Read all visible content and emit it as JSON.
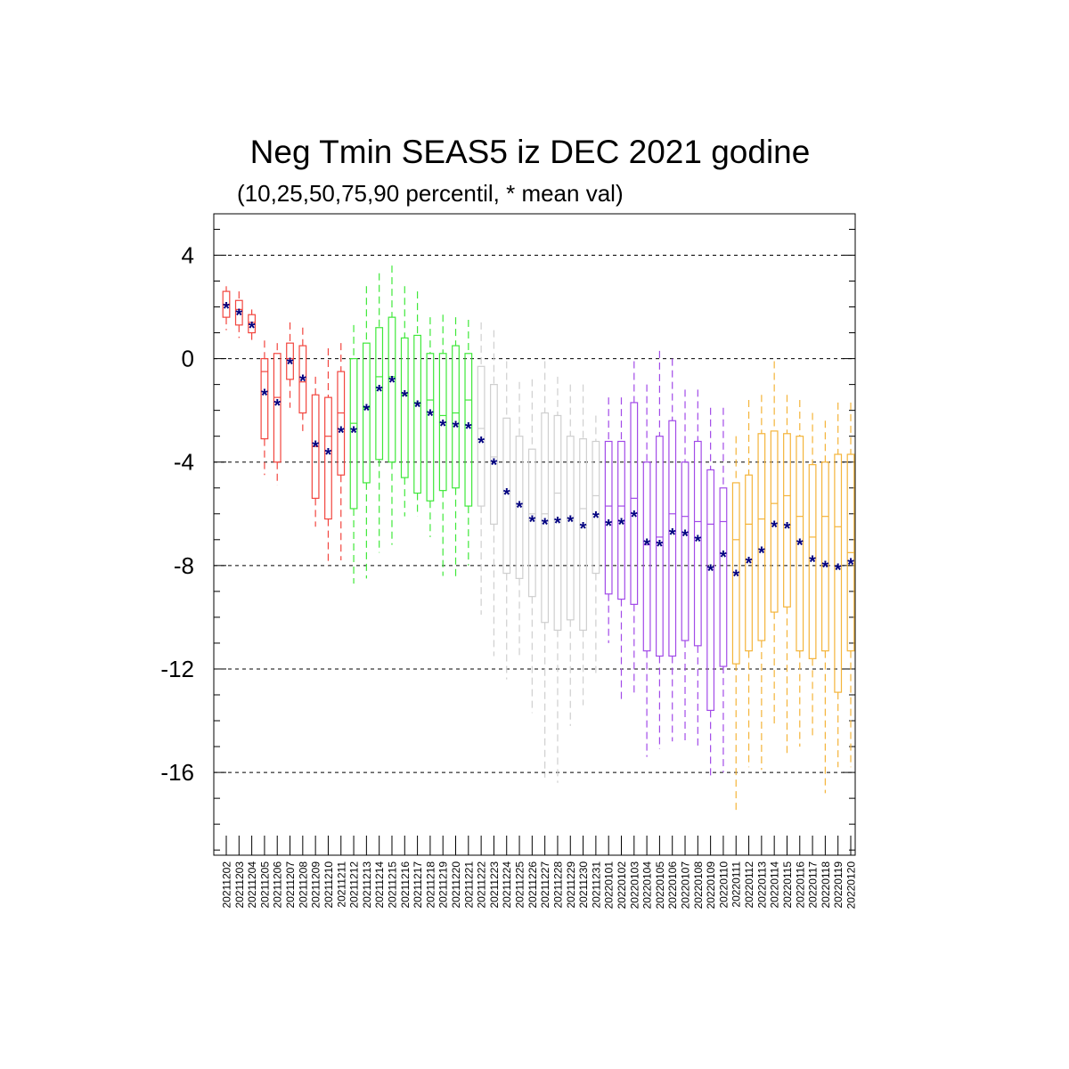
{
  "chart_data": {
    "type": "box",
    "title": "Neg Tmin SEAS5 iz DEC 2021 godine",
    "subtitle": "(10,25,50,75,90 percentil, * mean val)",
    "ylim": [
      -19.2,
      5.6
    ],
    "yticks": [
      4,
      0,
      -4,
      -8,
      -12,
      -16
    ],
    "grid": "dashed horizontal at labeled ticks",
    "mean_marker": "*",
    "colors": {
      "red": "#f2453e",
      "green": "#3fe83a",
      "gray": "#cfcfcf",
      "purple": "#a24be8",
      "orange": "#f4b43a",
      "mean": "#000080"
    },
    "boxes": [
      {
        "x": "20211202",
        "color": "red",
        "p10": 1.1,
        "p25": 1.6,
        "p50": 2.1,
        "p75": 2.6,
        "p90": 2.8,
        "mean": 2.05
      },
      {
        "x": "20211203",
        "color": "red",
        "p10": 0.8,
        "p25": 1.3,
        "p50": 1.9,
        "p75": 2.25,
        "p90": 2.6,
        "mean": 1.8
      },
      {
        "x": "20211204",
        "color": "red",
        "p10": 0.6,
        "p25": 1.0,
        "p50": 1.4,
        "p75": 1.7,
        "p90": 1.9,
        "mean": 1.3
      },
      {
        "x": "20211205",
        "color": "red",
        "p10": -4.5,
        "p25": -3.1,
        "p50": -0.5,
        "p75": 0.0,
        "p90": 0.7,
        "mean": -1.3
      },
      {
        "x": "20211206",
        "color": "red",
        "p10": -4.9,
        "p25": -4.0,
        "p50": -1.5,
        "p75": 0.2,
        "p90": 0.6,
        "mean": -1.7
      },
      {
        "x": "20211207",
        "color": "red",
        "p10": -1.9,
        "p25": -0.8,
        "p50": 0.0,
        "p75": 0.6,
        "p90": 1.4,
        "mean": -0.1
      },
      {
        "x": "20211208",
        "color": "red",
        "p10": -2.8,
        "p25": -2.1,
        "p50": -0.9,
        "p75": 0.5,
        "p90": 1.2,
        "mean": -0.75
      },
      {
        "x": "20211209",
        "color": "red",
        "p10": -6.5,
        "p25": -5.4,
        "p50": -3.4,
        "p75": -1.4,
        "p90": -0.7,
        "mean": -3.3
      },
      {
        "x": "20211210",
        "color": "red",
        "p10": -8.0,
        "p25": -6.2,
        "p50": -3.0,
        "p75": -1.5,
        "p90": 0.4,
        "mean": -3.6
      },
      {
        "x": "20211211",
        "color": "red",
        "p10": -7.8,
        "p25": -4.5,
        "p50": -2.1,
        "p75": -0.5,
        "p90": 0.6,
        "mean": -2.75
      },
      {
        "x": "20211212",
        "color": "green",
        "p10": -8.7,
        "p25": -5.8,
        "p50": -2.5,
        "p75": 0.0,
        "p90": 1.3,
        "mean": -2.75
      },
      {
        "x": "20211213",
        "color": "green",
        "p10": -8.5,
        "p25": -4.8,
        "p50": -1.9,
        "p75": 0.6,
        "p90": 2.8,
        "mean": -1.9
      },
      {
        "x": "20211214",
        "color": "green",
        "p10": -7.5,
        "p25": -3.9,
        "p50": -0.7,
        "p75": 1.2,
        "p90": 3.3,
        "mean": -1.15
      },
      {
        "x": "20211215",
        "color": "green",
        "p10": -7.2,
        "p25": -4.0,
        "p50": -0.7,
        "p75": 1.6,
        "p90": 3.6,
        "mean": -0.8
      },
      {
        "x": "20211216",
        "color": "green",
        "p10": -6.1,
        "p25": -4.6,
        "p50": -1.4,
        "p75": 0.8,
        "p90": 2.8,
        "mean": -1.35
      },
      {
        "x": "20211217",
        "color": "green",
        "p10": -6.1,
        "p25": -5.2,
        "p50": -1.7,
        "p75": 0.9,
        "p90": 2.6,
        "mean": -1.75
      },
      {
        "x": "20211218",
        "color": "green",
        "p10": -6.9,
        "p25": -5.5,
        "p50": -1.6,
        "p75": 0.2,
        "p90": 1.6,
        "mean": -2.1
      },
      {
        "x": "20211219",
        "color": "green",
        "p10": -8.4,
        "p25": -5.1,
        "p50": -2.2,
        "p75": 0.2,
        "p90": 1.7,
        "mean": -2.5
      },
      {
        "x": "20211220",
        "color": "green",
        "p10": -8.5,
        "p25": -5.0,
        "p50": -2.1,
        "p75": 0.5,
        "p90": 1.6,
        "mean": -2.55
      },
      {
        "x": "20211221",
        "color": "green",
        "p10": -8.0,
        "p25": -5.7,
        "p50": -1.6,
        "p75": 0.2,
        "p90": 1.5,
        "mean": -2.6
      },
      {
        "x": "20211222",
        "color": "gray",
        "p10": -9.9,
        "p25": -5.7,
        "p50": -2.7,
        "p75": -0.3,
        "p90": 1.4,
        "mean": -3.15
      },
      {
        "x": "20211223",
        "color": "gray",
        "p10": -11.5,
        "p25": -6.4,
        "p50": -3.8,
        "p75": -1.0,
        "p90": 1.1,
        "mean": -4.0
      },
      {
        "x": "20211224",
        "color": "gray",
        "p10": -12.4,
        "p25": -8.3,
        "p50": -5.2,
        "p75": -2.3,
        "p90": -0.1,
        "mean": -5.15
      },
      {
        "x": "20211225",
        "color": "gray",
        "p10": -11.5,
        "p25": -8.5,
        "p50": -5.6,
        "p75": -3.0,
        "p90": -0.9,
        "mean": -5.65
      },
      {
        "x": "20211226",
        "color": "gray",
        "p10": -13.7,
        "p25": -9.2,
        "p50": -6.0,
        "p75": -3.5,
        "p90": -0.8,
        "mean": -6.2
      },
      {
        "x": "20211227",
        "color": "gray",
        "p10": -16.2,
        "p25": -10.2,
        "p50": -6.0,
        "p75": -2.1,
        "p90": -0.1,
        "mean": -6.3
      },
      {
        "x": "20211228",
        "color": "gray",
        "p10": -16.4,
        "p25": -10.5,
        "p50": -5.2,
        "p75": -2.2,
        "p90": -0.7,
        "mean": -6.25
      },
      {
        "x": "20211229",
        "color": "gray",
        "p10": -14.2,
        "p25": -10.1,
        "p50": -6.2,
        "p75": -3.0,
        "p90": -1.0,
        "mean": -6.2
      },
      {
        "x": "20211230",
        "color": "gray",
        "p10": -13.4,
        "p25": -10.5,
        "p50": -5.8,
        "p75": -3.1,
        "p90": -1.0,
        "mean": -6.45
      },
      {
        "x": "20211231",
        "color": "gray",
        "p10": -12.3,
        "p25": -8.3,
        "p50": -5.3,
        "p75": -3.2,
        "p90": -2.2,
        "mean": -6.05
      },
      {
        "x": "20220101",
        "color": "purple",
        "p10": -11.0,
        "p25": -9.1,
        "p50": -5.7,
        "p75": -3.2,
        "p90": -1.5,
        "mean": -6.35
      },
      {
        "x": "20220102",
        "color": "purple",
        "p10": -13.3,
        "p25": -9.3,
        "p50": -5.7,
        "p75": -3.2,
        "p90": -1.5,
        "mean": -6.3
      },
      {
        "x": "20220103",
        "color": "purple",
        "p10": -13.0,
        "p25": -9.5,
        "p50": -5.4,
        "p75": -1.7,
        "p90": -0.1,
        "mean": -6.0
      },
      {
        "x": "20220104",
        "color": "purple",
        "p10": -15.4,
        "p25": -11.3,
        "p50": -7.2,
        "p75": -4.0,
        "p90": -1.0,
        "mean": -7.1
      },
      {
        "x": "20220105",
        "color": "purple",
        "p10": -15.1,
        "p25": -11.5,
        "p50": -6.9,
        "p75": -3.0,
        "p90": 0.3,
        "mean": -7.15
      },
      {
        "x": "20220106",
        "color": "purple",
        "p10": -14.8,
        "p25": -11.5,
        "p50": -6.0,
        "p75": -2.4,
        "p90": 0.0,
        "mean": -6.7
      },
      {
        "x": "20220107",
        "color": "purple",
        "p10": -14.9,
        "p25": -10.9,
        "p50": -6.1,
        "p75": -4.0,
        "p90": -1.2,
        "mean": -6.75
      },
      {
        "x": "20220108",
        "color": "purple",
        "p10": -15.0,
        "p25": -11.1,
        "p50": -6.3,
        "p75": -3.2,
        "p90": -1.2,
        "mean": -6.95
      },
      {
        "x": "20220109",
        "color": "purple",
        "p10": -16.2,
        "p25": -13.6,
        "p50": -6.4,
        "p75": -4.3,
        "p90": -1.9,
        "mean": -8.1
      },
      {
        "x": "20220110",
        "color": "purple",
        "p10": -16.0,
        "p25": -11.9,
        "p50": -6.3,
        "p75": -5.0,
        "p90": -1.9,
        "mean": -7.55
      },
      {
        "x": "20220111",
        "color": "orange",
        "p10": -17.5,
        "p25": -11.8,
        "p50": -7.0,
        "p75": -4.8,
        "p90": -3.0,
        "mean": -8.3
      },
      {
        "x": "20220112",
        "color": "orange",
        "p10": -15.8,
        "p25": -11.3,
        "p50": -6.4,
        "p75": -4.5,
        "p90": -1.6,
        "mean": -7.8
      },
      {
        "x": "20220113",
        "color": "orange",
        "p10": -15.9,
        "p25": -10.9,
        "p50": -6.2,
        "p75": -2.9,
        "p90": -1.4,
        "mean": -7.4
      },
      {
        "x": "20220114",
        "color": "orange",
        "p10": -14.2,
        "p25": -9.8,
        "p50": -5.6,
        "p75": -2.8,
        "p90": -0.1,
        "mean": -6.4
      },
      {
        "x": "20220115",
        "color": "orange",
        "p10": -15.4,
        "p25": -9.6,
        "p50": -5.3,
        "p75": -2.9,
        "p90": -1.4,
        "mean": -6.45
      },
      {
        "x": "20220116",
        "color": "orange",
        "p10": -15.0,
        "p25": -11.3,
        "p50": -6.1,
        "p75": -3.0,
        "p90": -1.6,
        "mean": -7.1
      },
      {
        "x": "20220117",
        "color": "orange",
        "p10": -14.6,
        "p25": -11.6,
        "p50": -6.9,
        "p75": -4.1,
        "p90": -2.1,
        "mean": -7.75
      },
      {
        "x": "20220118",
        "color": "orange",
        "p10": -16.8,
        "p25": -11.3,
        "p50": -6.1,
        "p75": -4.0,
        "p90": -2.4,
        "mean": -7.95
      },
      {
        "x": "20220119",
        "color": "orange",
        "p10": -15.8,
        "p25": -12.9,
        "p50": -6.5,
        "p75": -3.7,
        "p90": -1.7,
        "mean": -8.05
      },
      {
        "x": "20220120",
        "color": "orange",
        "p10": -15.8,
        "p25": -11.3,
        "p50": -7.5,
        "p75": -3.7,
        "p90": -1.7,
        "mean": -7.85
      }
    ]
  }
}
